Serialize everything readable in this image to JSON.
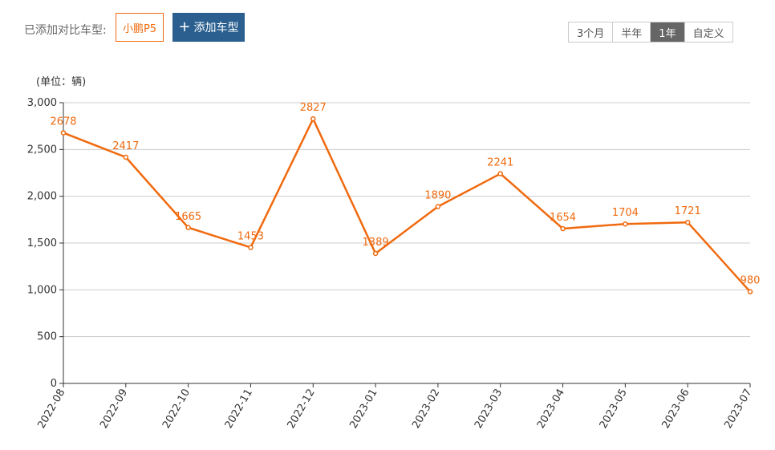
{
  "toolbar": {
    "added_label": "已添加对比车型:",
    "car_tag": "小鹏P5",
    "add_button": "添加车型",
    "ranges": [
      "3个月",
      "半年",
      "1年",
      "自定义"
    ],
    "active_range": "1年"
  },
  "colors": {
    "accent": "#f06a0f",
    "button_bg": "#2a5f8f",
    "active_range_bg": "#666666",
    "grid": "#cccccc"
  },
  "icons": {
    "add": "plus-icon"
  },
  "chart_data": {
    "type": "line",
    "unit_label": "(单位：辆)",
    "categories": [
      "2022-08",
      "2022-09",
      "2022-10",
      "2022-11",
      "2022-12",
      "2023-01",
      "2023-02",
      "2023-03",
      "2023-04",
      "2023-05",
      "2023-06",
      "2023-07"
    ],
    "series": [
      {
        "values": [
          2678,
          2417,
          1665,
          1453,
          2827,
          1389,
          1890,
          2241,
          1654,
          1704,
          1721,
          980
        ]
      }
    ],
    "data_labels": [
      "2678",
      "2417",
      "1665",
      "1453",
      "2827",
      "1389",
      "1890",
      "2241",
      "1654",
      "1704",
      "1721",
      "980"
    ],
    "ylim": [
      0,
      3000
    ],
    "yticks": [
      0,
      500,
      1000,
      1500,
      2000,
      2500,
      3000
    ],
    "ytick_labels": [
      "0",
      "500",
      "1,000",
      "1,500",
      "2,000",
      "2,500",
      "3,000"
    ],
    "grid": true,
    "line_color": "#f06a0f"
  }
}
